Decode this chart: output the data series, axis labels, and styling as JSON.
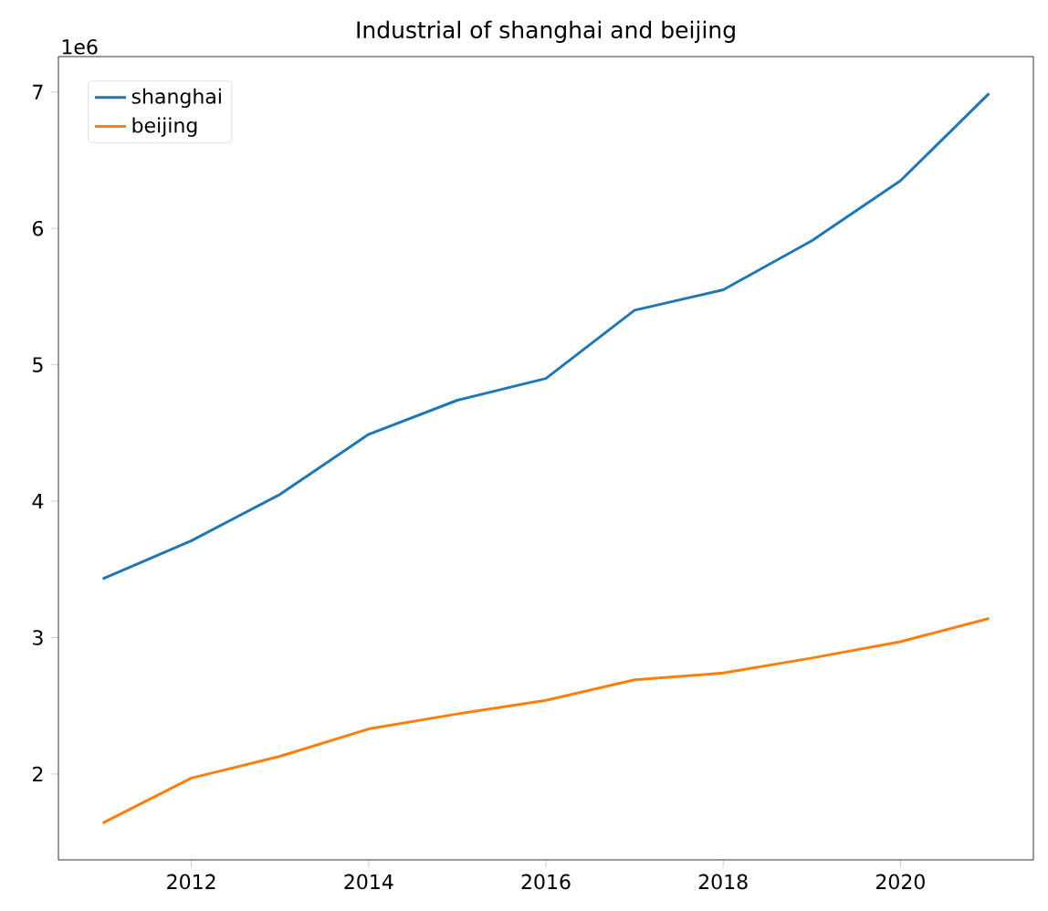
{
  "chart_data": {
    "type": "line",
    "title": "Industrial of shanghai and beijing",
    "x": [
      2011,
      2012,
      2013,
      2014,
      2015,
      2016,
      2017,
      2018,
      2019,
      2020,
      2021
    ],
    "series": [
      {
        "name": "shanghai",
        "color": "#1f77b4",
        "values": [
          3.43,
          3.71,
          4.05,
          4.49,
          4.74,
          4.9,
          5.4,
          5.55,
          5.91,
          6.35,
          6.99
        ]
      },
      {
        "name": "beijing",
        "color": "#ff7f0e",
        "values": [
          1.64,
          1.97,
          2.13,
          2.33,
          2.44,
          2.54,
          2.69,
          2.74,
          2.85,
          2.97,
          3.14
        ]
      }
    ],
    "xlim": [
      2010.5,
      2021.5
    ],
    "ylim": [
      1.37,
      7.26
    ],
    "xticks": [
      2012,
      2014,
      2016,
      2018,
      2020
    ],
    "yticks": [
      2,
      3,
      4,
      5,
      6,
      7
    ],
    "annotations": [
      "1e6"
    ],
    "legend": "top left",
    "grid": false,
    "marker": "none",
    "line_style": "solid"
  }
}
